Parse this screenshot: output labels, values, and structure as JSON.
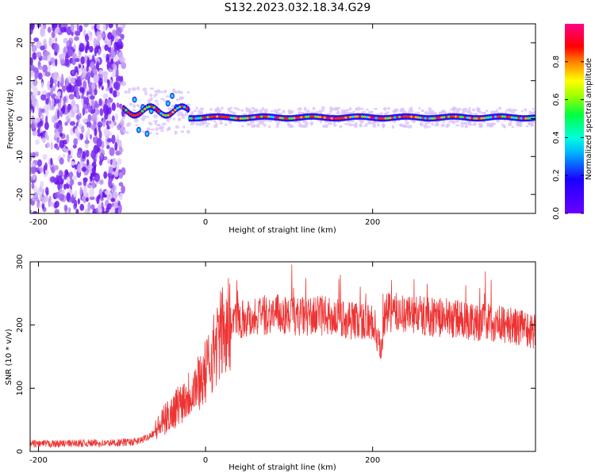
{
  "page": {
    "title": "S132.2023.032.18.34.G29"
  },
  "colors": {
    "snr_line": "#ee3333",
    "axis": "#000000",
    "background": "#ffffff"
  },
  "chart_data": [
    {
      "type": "heatmap",
      "xlabel": "Height of straight line (km)",
      "ylabel": "Frequency (Hz)",
      "xlim": [
        -210,
        395
      ],
      "ylim": [
        -25,
        25
      ],
      "x_ticks": [
        -200,
        0,
        200
      ],
      "y_ticks": [
        -20,
        -10,
        0,
        10,
        20
      ],
      "colorbar": {
        "label": "Normalized spectral amplitude",
        "range": [
          0,
          1
        ],
        "ticks": [
          "0.0",
          "0.2",
          "0.4",
          "0.6",
          "0.8"
        ],
        "colormap": "rainbow (violet → blue → cyan → green → yellow → red → magenta)"
      },
      "features": [
        {
          "x_range": [
            -210,
            -100
          ],
          "description": "broadband violet noise across all frequencies"
        },
        {
          "x_range": [
            -100,
            -20
          ],
          "center_hz": 2,
          "description": "transition with frequency excursions"
        },
        {
          "x_range": [
            -20,
            395
          ],
          "center_hz": 0,
          "description": "narrow high-amplitude line near 0 Hz"
        }
      ]
    },
    {
      "type": "line",
      "xlabel": "Height of straight line (km)",
      "ylabel": "SNR (10 * v/v)",
      "xlim": [
        -210,
        395
      ],
      "ylim": [
        0,
        300
      ],
      "x_ticks": [
        -200,
        0,
        200
      ],
      "y_ticks": [
        0,
        100,
        200,
        300
      ],
      "series": [
        {
          "x": [
            -210,
            -180,
            -150,
            -120,
            -100,
            -80,
            -70,
            -60,
            -50,
            -40,
            -30,
            -20,
            -10,
            0,
            10,
            20,
            30,
            40,
            60,
            80,
            100,
            120,
            140,
            160,
            180,
            200,
            205,
            210,
            215,
            220,
            240,
            260,
            280,
            300,
            320,
            340,
            360,
            380,
            395
          ],
          "values": [
            12,
            12,
            13,
            13,
            14,
            16,
            22,
            32,
            48,
            62,
            78,
            92,
            108,
            125,
            160,
            190,
            205,
            210,
            213,
            218,
            215,
            213,
            215,
            210,
            207,
            205,
            175,
            160,
            215,
            220,
            218,
            215,
            212,
            210,
            205,
            205,
            200,
            195,
            190
          ]
        }
      ]
    }
  ]
}
